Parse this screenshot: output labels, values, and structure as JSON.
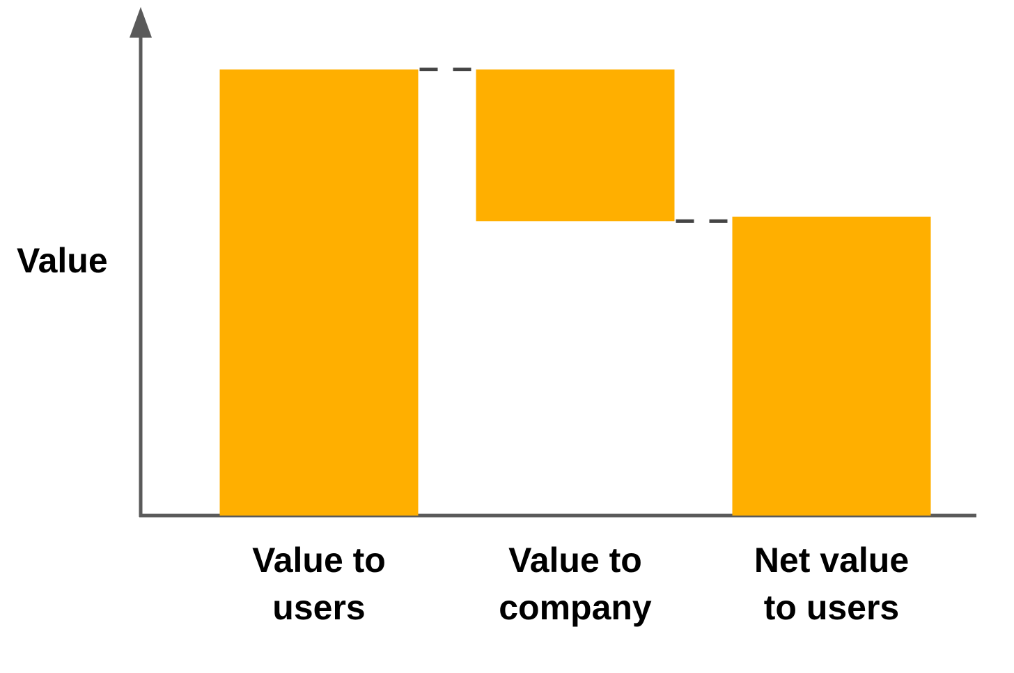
{
  "chart_data": {
    "type": "waterfall",
    "y_label": "Value",
    "categories": [
      "Value to users",
      "Value to company",
      "Net value to users"
    ],
    "values": [
      100,
      -34,
      67
    ],
    "measure": [
      "absolute",
      "relative",
      "absolute"
    ],
    "color": "#ffaf00",
    "connector_color": "#444444",
    "axis_color": "#5a5a5a",
    "ylim": [
      0,
      114
    ]
  }
}
